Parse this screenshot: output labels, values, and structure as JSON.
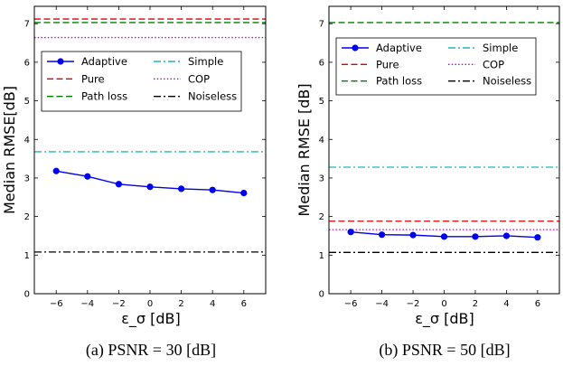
{
  "chart_data": [
    {
      "type": "line",
      "caption": "(a)  PSNR = 30 [dB]",
      "xlabel": "ε_σ [dB]",
      "ylabel": "Median RMSE[dB]",
      "xlim": [
        -7.4,
        7.4
      ],
      "ylim": [
        0,
        7.45
      ],
      "xticks": [
        -6,
        -4,
        -2,
        0,
        2,
        4,
        6
      ],
      "xtick_labels": [
        "−6",
        "−4",
        "−2",
        "0",
        "2",
        "4",
        "6"
      ],
      "yticks": [
        0,
        1,
        2,
        3,
        4,
        5,
        6,
        7
      ],
      "legend_position": "center",
      "series": [
        {
          "name": "Adaptive",
          "color": "#0000ee",
          "style": "solid-marker",
          "x": [
            -6,
            -4,
            -2,
            0,
            2,
            4,
            6
          ],
          "values": [
            3.18,
            3.04,
            2.84,
            2.77,
            2.72,
            2.69,
            2.61
          ]
        },
        {
          "name": "Pure",
          "color": "#dd0000",
          "style": "dashed",
          "constant": 7.12
        },
        {
          "name": "Path loss",
          "color": "#008000",
          "style": "dashed",
          "constant": 7.03
        },
        {
          "name": "Simple",
          "color": "#1fb4c0",
          "style": "dashdot",
          "constant": 3.68
        },
        {
          "name": "COP",
          "color": "#cc00cc",
          "style": "dotted",
          "constant": 6.64
        },
        {
          "name": "Noiseless",
          "color": "#000000",
          "style": "dashdot",
          "constant": 1.08
        }
      ]
    },
    {
      "type": "line",
      "caption": "(b)  PSNR = 50 [dB]",
      "xlabel": "ε_σ [dB]",
      "ylabel": "Median RMSE [dB]",
      "xlim": [
        -7.4,
        7.4
      ],
      "ylim": [
        0,
        7.45
      ],
      "xticks": [
        -6,
        -4,
        -2,
        0,
        2,
        4,
        6
      ],
      "xtick_labels": [
        "−6",
        "−4",
        "−2",
        "0",
        "2",
        "4",
        "6"
      ],
      "yticks": [
        0,
        1,
        2,
        3,
        4,
        5,
        6,
        7
      ],
      "legend_position": "top",
      "series": [
        {
          "name": "Adaptive",
          "color": "#0000ee",
          "style": "solid-marker",
          "x": [
            -6,
            -4,
            -2,
            0,
            2,
            4,
            6
          ],
          "values": [
            1.6,
            1.53,
            1.52,
            1.48,
            1.48,
            1.5,
            1.46
          ]
        },
        {
          "name": "Pure",
          "color": "#dd0000",
          "style": "dashed",
          "constant": 1.88
        },
        {
          "name": "Path loss",
          "color": "#008000",
          "style": "dashed",
          "constant": 7.03
        },
        {
          "name": "Simple",
          "color": "#1fb4c0",
          "style": "dashdot",
          "constant": 3.28
        },
        {
          "name": "COP",
          "color": "#cc00cc",
          "style": "dotted",
          "constant": 1.66
        },
        {
          "name": "Noiseless",
          "color": "#000000",
          "style": "dashdot",
          "constant": 1.07
        }
      ]
    }
  ]
}
